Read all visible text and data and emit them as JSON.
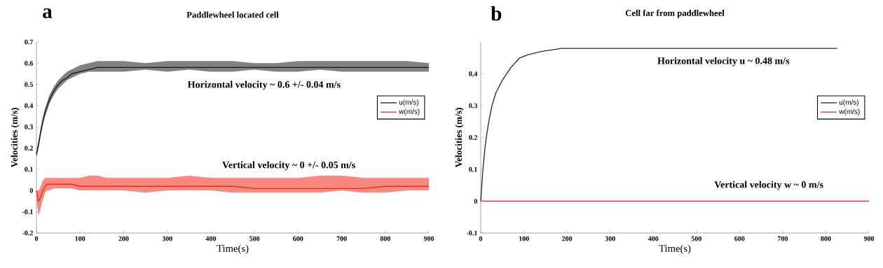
{
  "chart_data": [
    {
      "type": "line",
      "title": "Paddlewheel located cell",
      "xlabel": "Time(s)",
      "ylabel": "Velocities (m/s)",
      "annotations": [
        "a",
        "Horizontal velocity ~ 0.6 +/- 0.04 m/s",
        "Vertical velocity ~ 0 +/- 0.05 m/s"
      ],
      "xlim": [
        0,
        900
      ],
      "ylim": [
        -0.2,
        0.7
      ],
      "xticks": [
        0,
        100,
        200,
        300,
        400,
        500,
        600,
        700,
        800,
        900
      ],
      "yticks": [
        -0.2,
        -0.1,
        0,
        0.1,
        0.2,
        0.3,
        0.4,
        0.5,
        0.6,
        0.7
      ],
      "legend": "right",
      "series": [
        {
          "name": "u(m/s)",
          "color": "#1a1a1a",
          "x": [
            0,
            5,
            10,
            15,
            20,
            25,
            30,
            40,
            50,
            60,
            70,
            80,
            100,
            120,
            140,
            160,
            200,
            250,
            300,
            350,
            400,
            450,
            500,
            550,
            600,
            650,
            700,
            750,
            800,
            850,
            900
          ],
          "values": [
            0.17,
            0.22,
            0.28,
            0.33,
            0.37,
            0.4,
            0.43,
            0.47,
            0.5,
            0.52,
            0.53,
            0.55,
            0.56,
            0.57,
            0.58,
            0.58,
            0.58,
            0.58,
            0.58,
            0.58,
            0.58,
            0.58,
            0.58,
            0.58,
            0.58,
            0.58,
            0.58,
            0.58,
            0.58,
            0.58,
            0.58
          ],
          "lower": [
            0.16,
            0.2,
            0.26,
            0.31,
            0.35,
            0.38,
            0.41,
            0.45,
            0.48,
            0.5,
            0.52,
            0.53,
            0.55,
            0.56,
            0.56,
            0.56,
            0.56,
            0.57,
            0.56,
            0.57,
            0.56,
            0.56,
            0.57,
            0.56,
            0.56,
            0.57,
            0.56,
            0.56,
            0.56,
            0.56,
            0.56
          ],
          "upper": [
            0.18,
            0.24,
            0.3,
            0.35,
            0.39,
            0.42,
            0.45,
            0.49,
            0.52,
            0.54,
            0.56,
            0.57,
            0.59,
            0.6,
            0.61,
            0.61,
            0.61,
            0.6,
            0.61,
            0.61,
            0.61,
            0.61,
            0.6,
            0.6,
            0.61,
            0.61,
            0.61,
            0.61,
            0.61,
            0.61,
            0.6
          ]
        },
        {
          "name": "w(m/s)",
          "color": "#f02818",
          "x": [
            0,
            5,
            10,
            15,
            20,
            25,
            30,
            40,
            50,
            60,
            70,
            80,
            100,
            120,
            140,
            160,
            200,
            250,
            300,
            350,
            400,
            450,
            500,
            550,
            600,
            650,
            700,
            750,
            800,
            850,
            900
          ],
          "values": [
            0,
            -0.05,
            -0.03,
            0.0,
            0.02,
            0.03,
            0.03,
            0.03,
            0.03,
            0.03,
            0.03,
            0.03,
            0.02,
            0.02,
            0.02,
            0.02,
            0.02,
            0.02,
            0.02,
            0.02,
            0.02,
            0.02,
            0.01,
            0.01,
            0.01,
            0.01,
            0.01,
            0.01,
            0.02,
            0.02,
            0.02
          ],
          "lower": [
            -0.05,
            -0.12,
            -0.08,
            -0.04,
            -0.01,
            0.0,
            0.0,
            0.01,
            0.01,
            0.01,
            0.01,
            0.01,
            0.0,
            0.0,
            0.0,
            0.0,
            0.0,
            -0.01,
            0.0,
            0.0,
            0.0,
            -0.01,
            -0.01,
            -0.01,
            -0.01,
            -0.01,
            0.0,
            -0.01,
            -0.01,
            0.0,
            0.0
          ],
          "upper": [
            0.0,
            0.0,
            0.02,
            0.05,
            0.06,
            0.06,
            0.06,
            0.06,
            0.06,
            0.06,
            0.06,
            0.06,
            0.06,
            0.07,
            0.07,
            0.06,
            0.06,
            0.06,
            0.06,
            0.07,
            0.06,
            0.06,
            0.06,
            0.06,
            0.06,
            0.07,
            0.07,
            0.06,
            0.06,
            0.06,
            0.06
          ]
        }
      ]
    },
    {
      "type": "line",
      "title": "Cell far from paddlewheel",
      "xlabel": "Time(s)",
      "ylabel": "Velocities (m/s)",
      "annotations": [
        "b",
        "Horizontal velocity u ~ 0.48 m/s",
        "Vertical velocity w ~ 0 m/s"
      ],
      "xlim": [
        0,
        900
      ],
      "ylim": [
        -0.1,
        0.5
      ],
      "xticks": [
        0,
        100,
        200,
        300,
        400,
        500,
        600,
        700,
        800,
        900
      ],
      "yticks": [
        -0.1,
        0,
        0.1,
        0.2,
        0.3,
        0.4
      ],
      "legend": "right",
      "series": [
        {
          "name": "u(m/s)",
          "color": "#2a2a2a",
          "x": [
            0,
            5,
            10,
            15,
            20,
            26,
            35,
            50,
            70,
            90,
            110,
            140,
            188,
            250,
            400,
            600,
            826
          ],
          "values": [
            0,
            0.1,
            0.17,
            0.22,
            0.26,
            0.3,
            0.34,
            0.38,
            0.42,
            0.45,
            0.46,
            0.47,
            0.48,
            0.48,
            0.48,
            0.48,
            0.48
          ]
        },
        {
          "name": "w(m/s)",
          "color": "#e0304a",
          "x": [
            0,
            900
          ],
          "values": [
            0,
            0
          ]
        }
      ]
    }
  ]
}
